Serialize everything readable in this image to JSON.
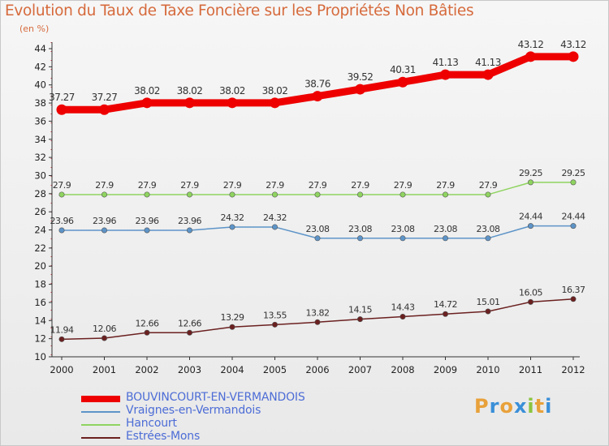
{
  "title": "Evolution du Taux de Taxe Foncière sur les Propriétés Non Bâties",
  "unit_label": "(en %)",
  "logo": {
    "text": "Proxiti",
    "letters": [
      {
        "ch": "P",
        "color": "#e8a13a"
      },
      {
        "ch": "r",
        "color": "#3a8fd8"
      },
      {
        "ch": "o",
        "color": "#e8a13a"
      },
      {
        "ch": "x",
        "color": "#3a8fd8"
      },
      {
        "ch": "i",
        "color": "#8bc43f"
      },
      {
        "ch": "t",
        "color": "#e8a13a"
      },
      {
        "ch": "i",
        "color": "#3a8fd8"
      }
    ]
  },
  "chart_data": {
    "type": "line",
    "title": "Evolution du Taux de Taxe Foncière sur les Propriétés Non Bâties",
    "ylabel": "(en %)",
    "x": [
      "2000",
      "2001",
      "2002",
      "2003",
      "2004",
      "2005",
      "2006",
      "2007",
      "2008",
      "2009",
      "2010",
      "2011",
      "2012"
    ],
    "ylim": [
      10,
      44
    ],
    "yticks": [
      "10",
      "12",
      "14",
      "16",
      "18",
      "20",
      "22",
      "24",
      "26",
      "28",
      "30",
      "32",
      "34",
      "36",
      "38",
      "40",
      "42",
      "44"
    ],
    "grid": false,
    "legend_position": "bottom-left",
    "series": [
      {
        "name": "BOUVINCOURT-EN-VERMANDOIS",
        "color": "#ee0000",
        "values": [
          37.27,
          37.27,
          38.02,
          38.02,
          38.02,
          38.02,
          38.76,
          39.52,
          40.31,
          41.13,
          41.13,
          43.12,
          43.12
        ],
        "labels": [
          "37.27",
          "37.27",
          "38.02",
          "38.02",
          "38.02",
          "38.02",
          "38.76",
          "39.52",
          "40.31",
          "41.13",
          "41.13",
          "43.12",
          "43.12"
        ]
      },
      {
        "name": "Vraignes-en-Vermandois",
        "color": "#5d94c8",
        "values": [
          23.96,
          23.96,
          23.96,
          23.96,
          24.32,
          24.32,
          23.08,
          23.08,
          23.08,
          23.08,
          23.08,
          24.44,
          24.44
        ],
        "labels": [
          "23.96",
          "23.96",
          "23.96",
          "23.96",
          "24.32",
          "24.32",
          "23.08",
          "23.08",
          "23.08",
          "23.08",
          "23.08",
          "24.44",
          "24.44"
        ]
      },
      {
        "name": "Hancourt",
        "color": "#8fd460",
        "values": [
          27.9,
          27.9,
          27.9,
          27.9,
          27.9,
          27.9,
          27.9,
          27.9,
          27.9,
          27.9,
          27.9,
          29.25,
          29.25
        ],
        "labels": [
          "27.9",
          "27.9",
          "27.9",
          "27.9",
          "27.9",
          "27.9",
          "27.9",
          "27.9",
          "27.9",
          "27.9",
          "27.9",
          "29.25",
          "29.25"
        ]
      },
      {
        "name": "Estrées-Mons",
        "color": "#6b2020",
        "values": [
          11.94,
          12.06,
          12.66,
          12.66,
          13.29,
          13.55,
          13.82,
          14.15,
          14.43,
          14.72,
          15.01,
          16.05,
          16.37
        ],
        "labels": [
          "11.94",
          "12.06",
          "12.66",
          "12.66",
          "13.29",
          "13.55",
          "13.82",
          "14.15",
          "14.43",
          "14.72",
          "15.01",
          "16.05",
          "16.37"
        ]
      }
    ]
  }
}
